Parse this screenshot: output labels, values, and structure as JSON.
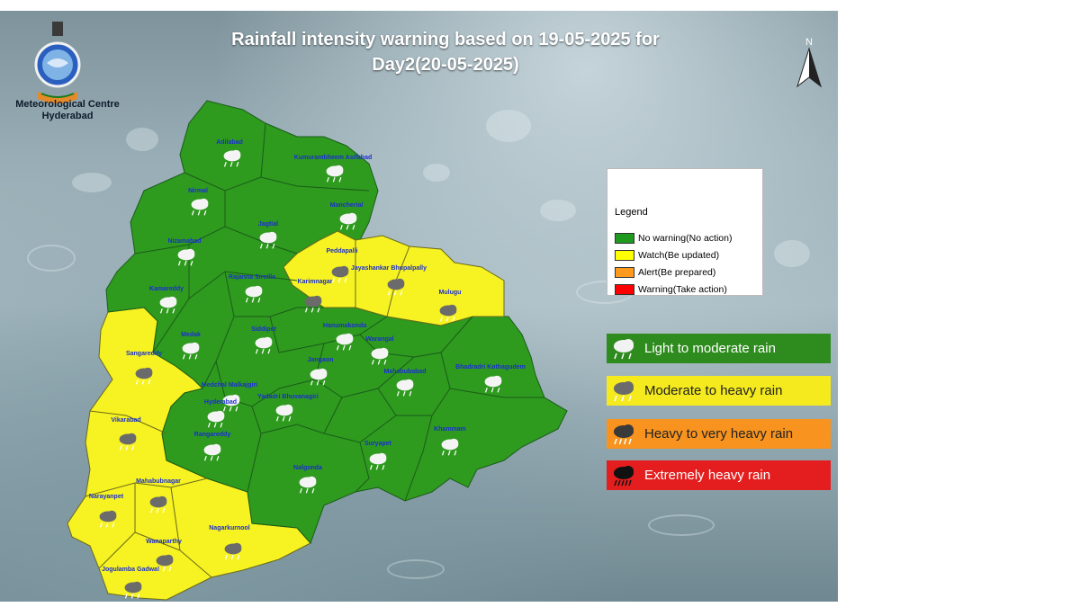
{
  "header": {
    "title_line1": "Rainfall intensity warning based on 19-05-2025 for",
    "title_line2": "Day2(20-05-2025)",
    "north_label": "N",
    "org_line1": "Meteorological Centre",
    "org_line2": "Hyderabad"
  },
  "legend": {
    "title": "Legend",
    "items": [
      {
        "label": "No warning(No action)",
        "color": "#1e9a1e"
      },
      {
        "label": "Watch(Be updated)",
        "color": "#ffff00"
      },
      {
        "label": "Alert(Be prepared)",
        "color": "#ff9a1e"
      },
      {
        "label": "Warning(Take action)",
        "color": "#ff0000"
      }
    ]
  },
  "rain_categories": [
    {
      "label": "Light to moderate rain",
      "bg": "#2e8b1e",
      "text": "#ffffff",
      "icon": "light-rain-cloud-icon"
    },
    {
      "label": "Moderate to heavy rain",
      "bg": "#f4ea1e",
      "text": "#222222",
      "icon": "moderate-rain-cloud-icon"
    },
    {
      "label": "Heavy to very heavy rain",
      "bg": "#f7931e",
      "text": "#222222",
      "icon": "heavy-rain-cloud-icon"
    },
    {
      "label": "Extremely heavy rain",
      "bg": "#e41e1e",
      "text": "#ffffff",
      "icon": "extreme-rain-cloud-icon"
    }
  ],
  "colors": {
    "green": "#2e9a1e",
    "yellow": "#f7f221",
    "border": "#1a5c1a"
  },
  "districts": [
    {
      "name": "Adilabad",
      "level": "green",
      "rain": "light"
    },
    {
      "name": "Kumurambheem Asifabad",
      "level": "green",
      "rain": "light"
    },
    {
      "name": "Nirmal",
      "level": "green",
      "rain": "light"
    },
    {
      "name": "Mancherial",
      "level": "green",
      "rain": "light"
    },
    {
      "name": "Jagtial",
      "level": "green",
      "rain": "light"
    },
    {
      "name": "Nizamabad",
      "level": "green",
      "rain": "light"
    },
    {
      "name": "Peddapalli",
      "level": "yellow",
      "rain": "moderate"
    },
    {
      "name": "Jayashankar Bhupalpally",
      "level": "yellow",
      "rain": "moderate"
    },
    {
      "name": "Karimnagar",
      "level": "yellow",
      "rain": "moderate"
    },
    {
      "name": "Rajanna Sircilla",
      "level": "green",
      "rain": "light"
    },
    {
      "name": "Kamareddy",
      "level": "green",
      "rain": "light"
    },
    {
      "name": "Mulugu",
      "level": "yellow",
      "rain": "moderate"
    },
    {
      "name": "Medak",
      "level": "green",
      "rain": "light"
    },
    {
      "name": "Siddipet",
      "level": "green",
      "rain": "light"
    },
    {
      "name": "Hanumakonda",
      "level": "green",
      "rain": "light"
    },
    {
      "name": "Warangal",
      "level": "green",
      "rain": "light"
    },
    {
      "name": "Sangareddy",
      "level": "yellow",
      "rain": "moderate"
    },
    {
      "name": "Jangaon",
      "level": "green",
      "rain": "light"
    },
    {
      "name": "Mahabubabad",
      "level": "green",
      "rain": "light"
    },
    {
      "name": "Bhadradri Kothagudem",
      "level": "green",
      "rain": "light"
    },
    {
      "name": "Medchal Malkajgiri",
      "level": "green",
      "rain": "light"
    },
    {
      "name": "Hyderabad",
      "level": "green",
      "rain": "light"
    },
    {
      "name": "Yadadri Bhuvanagiri",
      "level": "green",
      "rain": "light"
    },
    {
      "name": "Vikarabad",
      "level": "yellow",
      "rain": "moderate"
    },
    {
      "name": "Rangareddy",
      "level": "green",
      "rain": "light"
    },
    {
      "name": "Khammam",
      "level": "green",
      "rain": "light"
    },
    {
      "name": "Suryapet",
      "level": "green",
      "rain": "light"
    },
    {
      "name": "Nalgonda",
      "level": "green",
      "rain": "light"
    },
    {
      "name": "Mahabubnagar",
      "level": "yellow",
      "rain": "moderate"
    },
    {
      "name": "Narayanpet",
      "level": "yellow",
      "rain": "moderate"
    },
    {
      "name": "Nagarkurnool",
      "level": "yellow",
      "rain": "moderate"
    },
    {
      "name": "Wanaparthy",
      "level": "yellow",
      "rain": "moderate"
    },
    {
      "name": "Jogulamba Gadwal",
      "level": "yellow",
      "rain": "moderate"
    }
  ]
}
